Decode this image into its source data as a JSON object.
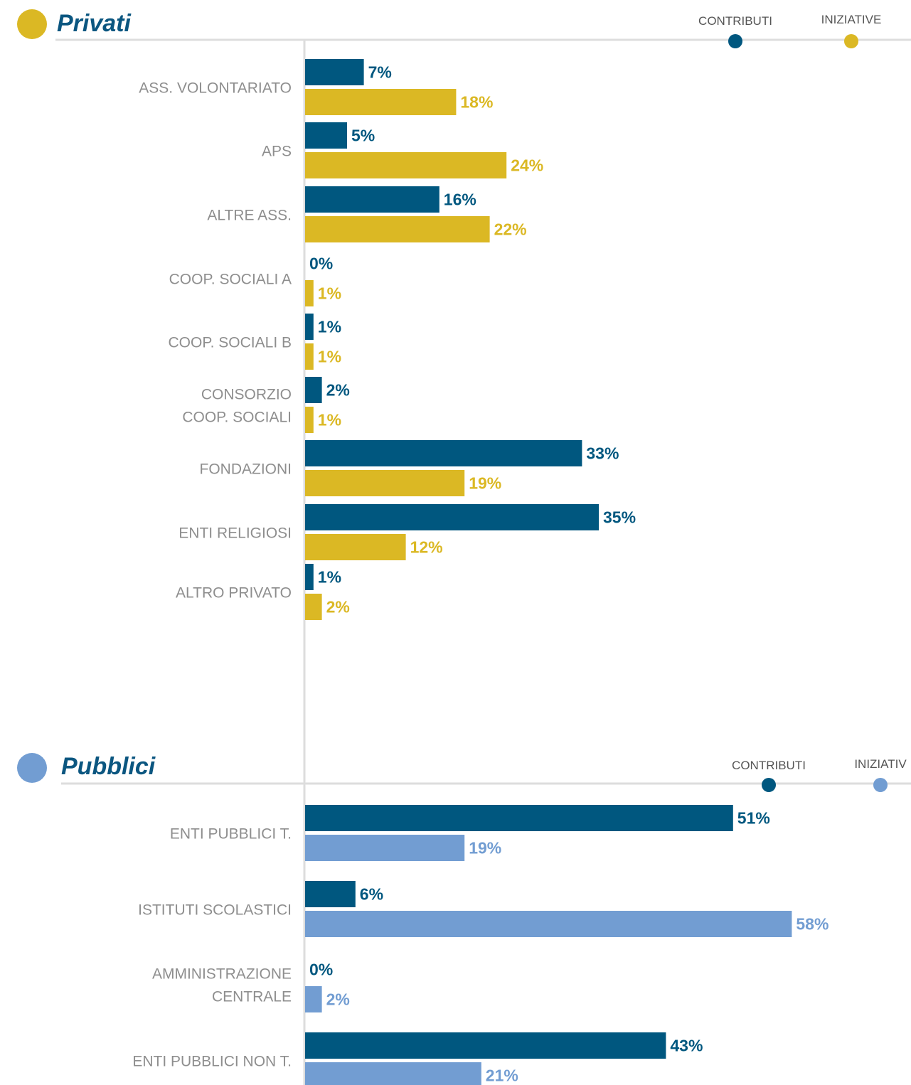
{
  "colors": {
    "contributi": "#00577f",
    "iniziative_privati": "#dbb824",
    "iniziative_pubblici": "#729dd2",
    "privati_marker": "#dbb824",
    "pubblici_marker": "#729dd2",
    "title": "#0b5680",
    "category_text": "#8e8e8e",
    "axis": "#dddddd"
  },
  "chart_data": [
    {
      "type": "bar",
      "orientation": "horizontal",
      "title": "Privati",
      "legend": [
        "CONTRIBUTI",
        "INIZIATIVE"
      ],
      "legend_position": "top-right",
      "categories": [
        [
          "ASS. VOLONTARIATO"
        ],
        [
          "APS"
        ],
        [
          "ALTRE ASS."
        ],
        [
          "COOP. SOCIALI A"
        ],
        [
          "COOP. SOCIALI B"
        ],
        [
          "CONSORZIO",
          "COOP. SOCIALI"
        ],
        [
          "FONDAZIONI"
        ],
        [
          "ENTI RELIGIOSI"
        ],
        [
          "ALTRO PRIVATO"
        ]
      ],
      "series": [
        {
          "name": "CONTRIBUTI",
          "values": [
            7,
            5,
            16,
            0,
            1,
            2,
            33,
            35,
            1
          ],
          "labels": [
            "7%",
            "5%",
            "16%",
            "0%",
            "1%",
            "2%",
            "33%",
            "35%",
            "1%"
          ]
        },
        {
          "name": "INIZIATIVE",
          "values": [
            18,
            24,
            22,
            1,
            1,
            1,
            19,
            12,
            2
          ],
          "labels": [
            "18%",
            "24%",
            "22%",
            "1%",
            "1%",
            "1%",
            "19%",
            "12%",
            "2%"
          ]
        }
      ],
      "unit": "%"
    },
    {
      "type": "bar",
      "orientation": "horizontal",
      "title": "Pubblici",
      "legend": [
        "CONTRIBUTI",
        "INIZIATIV"
      ],
      "legend_position": "top-right",
      "categories": [
        [
          "ENTI PUBBLICI T."
        ],
        [
          "ISTITUTI SCOLASTICI"
        ],
        [
          "AMMINISTRAZIONE",
          "CENTRALE"
        ],
        [
          "ENTI PUBBLICI NON T."
        ]
      ],
      "series": [
        {
          "name": "CONTRIBUTI",
          "values": [
            51,
            6,
            0,
            43
          ],
          "labels": [
            "51%",
            "6%",
            "0%",
            "43%"
          ]
        },
        {
          "name": "INIZIATIV",
          "values": [
            19,
            58,
            2,
            21
          ],
          "labels": [
            "19%",
            "58%",
            "2%",
            "21%"
          ]
        }
      ],
      "unit": "%"
    }
  ]
}
